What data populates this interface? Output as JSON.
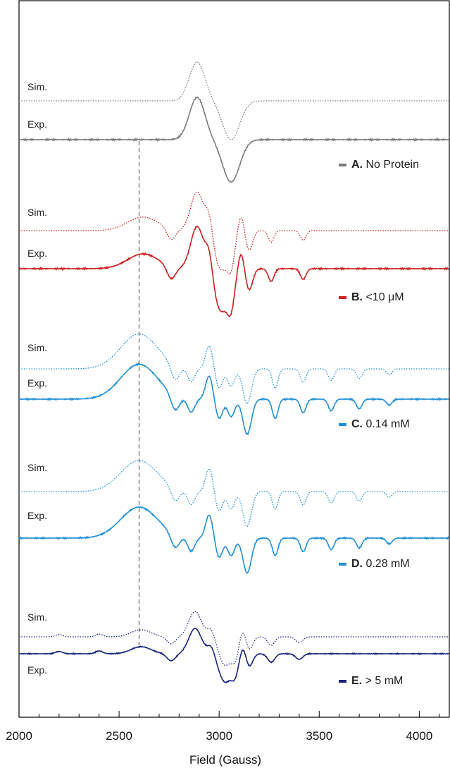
{
  "chart_data": {
    "type": "line",
    "xlabel": "Field (Gauss)",
    "xlim": [
      2000,
      4150
    ],
    "x_ticks": [
      "2000",
      "2500",
      "3000",
      "3500",
      "4000"
    ],
    "reference_line_x": 2600,
    "trace_labels": {
      "sim": "Sim.",
      "exp": "Exp."
    },
    "panels": [
      {
        "id": "A",
        "letter": "A.",
        "legend": "No Protein",
        "color": "#7a7a7a",
        "features": [
          [
            2890,
            1.0,
            55
          ],
          [
            3060,
            -1.0,
            60
          ]
        ]
      },
      {
        "id": "B",
        "letter": "B.",
        "legend": "<10 μM",
        "color": "#cc1f1f",
        "features": [
          [
            2620,
            0.35,
            110
          ],
          [
            2760,
            -0.3,
            30
          ],
          [
            2890,
            1.0,
            45
          ],
          [
            2950,
            0.5,
            25
          ],
          [
            3010,
            -1.0,
            50
          ],
          [
            3060,
            -0.7,
            25
          ],
          [
            3110,
            0.4,
            20
          ],
          [
            3150,
            -0.5,
            25
          ],
          [
            3260,
            -0.3,
            20
          ],
          [
            3420,
            -0.25,
            20
          ]
        ]
      },
      {
        "id": "C",
        "letter": "C.",
        "legend": "0.14 mM",
        "color": "#1f8fd6",
        "features": [
          [
            2600,
            0.9,
            130
          ],
          [
            2780,
            -0.4,
            30
          ],
          [
            2860,
            -0.35,
            25
          ],
          [
            2950,
            0.6,
            25
          ],
          [
            3000,
            -0.5,
            25
          ],
          [
            3060,
            -0.45,
            25
          ],
          [
            3140,
            -0.9,
            30
          ],
          [
            3280,
            -0.5,
            20
          ],
          [
            3420,
            -0.35,
            20
          ],
          [
            3560,
            -0.3,
            20
          ],
          [
            3700,
            -0.25,
            20
          ],
          [
            3850,
            -0.15,
            20
          ]
        ]
      },
      {
        "id": "D",
        "letter": "D.",
        "legend": "0.28 mM",
        "color": "#1f8fd6",
        "features": [
          [
            2600,
            0.8,
            130
          ],
          [
            2780,
            -0.35,
            30
          ],
          [
            2860,
            -0.35,
            25
          ],
          [
            2950,
            0.6,
            25
          ],
          [
            3000,
            -0.5,
            25
          ],
          [
            3060,
            -0.45,
            25
          ],
          [
            3140,
            -0.9,
            30
          ],
          [
            3280,
            -0.45,
            20
          ],
          [
            3420,
            -0.35,
            20
          ],
          [
            3560,
            -0.3,
            20
          ],
          [
            3700,
            -0.25,
            20
          ],
          [
            3850,
            -0.15,
            20
          ]
        ]
      },
      {
        "id": "E",
        "letter": "E.",
        "legend": "> 5 mM",
        "color": "#15237a",
        "features": [
          [
            2200,
            0.08,
            25
          ],
          [
            2400,
            0.1,
            25
          ],
          [
            2610,
            0.25,
            70
          ],
          [
            2760,
            -0.25,
            30
          ],
          [
            2880,
            0.9,
            45
          ],
          [
            2960,
            0.3,
            25
          ],
          [
            3030,
            -1.0,
            45
          ],
          [
            3080,
            -0.6,
            25
          ],
          [
            3120,
            0.3,
            20
          ],
          [
            3150,
            -0.45,
            25
          ],
          [
            3260,
            -0.3,
            25
          ],
          [
            3400,
            -0.2,
            25
          ]
        ]
      }
    ]
  }
}
